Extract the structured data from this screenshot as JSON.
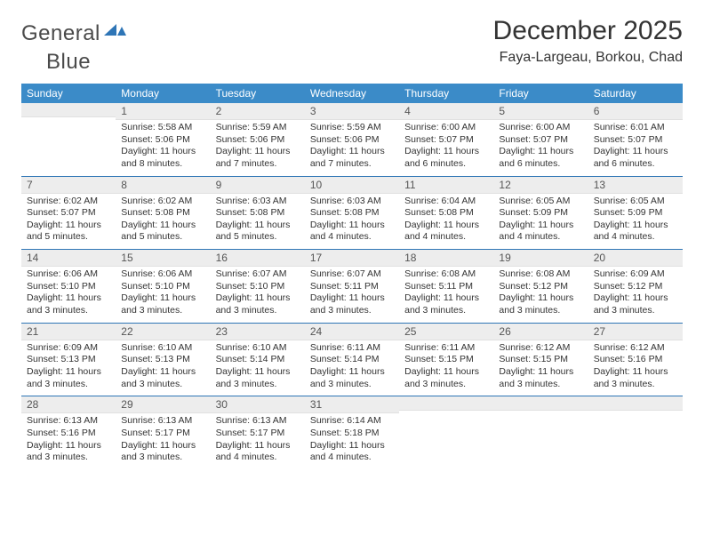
{
  "brand": {
    "word1": "General",
    "word2": "Blue",
    "logo_fill": "#2e75b6"
  },
  "title": "December 2025",
  "location": "Faya-Largeau, Borkou, Chad",
  "colors": {
    "header_bg": "#3b8bc8",
    "header_fg": "#ffffff",
    "rule": "#2e75b6",
    "daynum_bg": "#ededed",
    "text": "#333333"
  },
  "day_names": [
    "Sunday",
    "Monday",
    "Tuesday",
    "Wednesday",
    "Thursday",
    "Friday",
    "Saturday"
  ],
  "weeks": [
    [
      {
        "n": "",
        "sr": "",
        "ss": "",
        "dl": ""
      },
      {
        "n": "1",
        "sr": "5:58 AM",
        "ss": "5:06 PM",
        "dl": "11 hours and 8 minutes."
      },
      {
        "n": "2",
        "sr": "5:59 AM",
        "ss": "5:06 PM",
        "dl": "11 hours and 7 minutes."
      },
      {
        "n": "3",
        "sr": "5:59 AM",
        "ss": "5:06 PM",
        "dl": "11 hours and 7 minutes."
      },
      {
        "n": "4",
        "sr": "6:00 AM",
        "ss": "5:07 PM",
        "dl": "11 hours and 6 minutes."
      },
      {
        "n": "5",
        "sr": "6:00 AM",
        "ss": "5:07 PM",
        "dl": "11 hours and 6 minutes."
      },
      {
        "n": "6",
        "sr": "6:01 AM",
        "ss": "5:07 PM",
        "dl": "11 hours and 6 minutes."
      }
    ],
    [
      {
        "n": "7",
        "sr": "6:02 AM",
        "ss": "5:07 PM",
        "dl": "11 hours and 5 minutes."
      },
      {
        "n": "8",
        "sr": "6:02 AM",
        "ss": "5:08 PM",
        "dl": "11 hours and 5 minutes."
      },
      {
        "n": "9",
        "sr": "6:03 AM",
        "ss": "5:08 PM",
        "dl": "11 hours and 5 minutes."
      },
      {
        "n": "10",
        "sr": "6:03 AM",
        "ss": "5:08 PM",
        "dl": "11 hours and 4 minutes."
      },
      {
        "n": "11",
        "sr": "6:04 AM",
        "ss": "5:08 PM",
        "dl": "11 hours and 4 minutes."
      },
      {
        "n": "12",
        "sr": "6:05 AM",
        "ss": "5:09 PM",
        "dl": "11 hours and 4 minutes."
      },
      {
        "n": "13",
        "sr": "6:05 AM",
        "ss": "5:09 PM",
        "dl": "11 hours and 4 minutes."
      }
    ],
    [
      {
        "n": "14",
        "sr": "6:06 AM",
        "ss": "5:10 PM",
        "dl": "11 hours and 3 minutes."
      },
      {
        "n": "15",
        "sr": "6:06 AM",
        "ss": "5:10 PM",
        "dl": "11 hours and 3 minutes."
      },
      {
        "n": "16",
        "sr": "6:07 AM",
        "ss": "5:10 PM",
        "dl": "11 hours and 3 minutes."
      },
      {
        "n": "17",
        "sr": "6:07 AM",
        "ss": "5:11 PM",
        "dl": "11 hours and 3 minutes."
      },
      {
        "n": "18",
        "sr": "6:08 AM",
        "ss": "5:11 PM",
        "dl": "11 hours and 3 minutes."
      },
      {
        "n": "19",
        "sr": "6:08 AM",
        "ss": "5:12 PM",
        "dl": "11 hours and 3 minutes."
      },
      {
        "n": "20",
        "sr": "6:09 AM",
        "ss": "5:12 PM",
        "dl": "11 hours and 3 minutes."
      }
    ],
    [
      {
        "n": "21",
        "sr": "6:09 AM",
        "ss": "5:13 PM",
        "dl": "11 hours and 3 minutes."
      },
      {
        "n": "22",
        "sr": "6:10 AM",
        "ss": "5:13 PM",
        "dl": "11 hours and 3 minutes."
      },
      {
        "n": "23",
        "sr": "6:10 AM",
        "ss": "5:14 PM",
        "dl": "11 hours and 3 minutes."
      },
      {
        "n": "24",
        "sr": "6:11 AM",
        "ss": "5:14 PM",
        "dl": "11 hours and 3 minutes."
      },
      {
        "n": "25",
        "sr": "6:11 AM",
        "ss": "5:15 PM",
        "dl": "11 hours and 3 minutes."
      },
      {
        "n": "26",
        "sr": "6:12 AM",
        "ss": "5:15 PM",
        "dl": "11 hours and 3 minutes."
      },
      {
        "n": "27",
        "sr": "6:12 AM",
        "ss": "5:16 PM",
        "dl": "11 hours and 3 minutes."
      }
    ],
    [
      {
        "n": "28",
        "sr": "6:13 AM",
        "ss": "5:16 PM",
        "dl": "11 hours and 3 minutes."
      },
      {
        "n": "29",
        "sr": "6:13 AM",
        "ss": "5:17 PM",
        "dl": "11 hours and 3 minutes."
      },
      {
        "n": "30",
        "sr": "6:13 AM",
        "ss": "5:17 PM",
        "dl": "11 hours and 4 minutes."
      },
      {
        "n": "31",
        "sr": "6:14 AM",
        "ss": "5:18 PM",
        "dl": "11 hours and 4 minutes."
      },
      {
        "n": "",
        "sr": "",
        "ss": "",
        "dl": ""
      },
      {
        "n": "",
        "sr": "",
        "ss": "",
        "dl": ""
      },
      {
        "n": "",
        "sr": "",
        "ss": "",
        "dl": ""
      }
    ]
  ],
  "labels": {
    "sunrise": "Sunrise:",
    "sunset": "Sunset:",
    "daylight": "Daylight:"
  }
}
